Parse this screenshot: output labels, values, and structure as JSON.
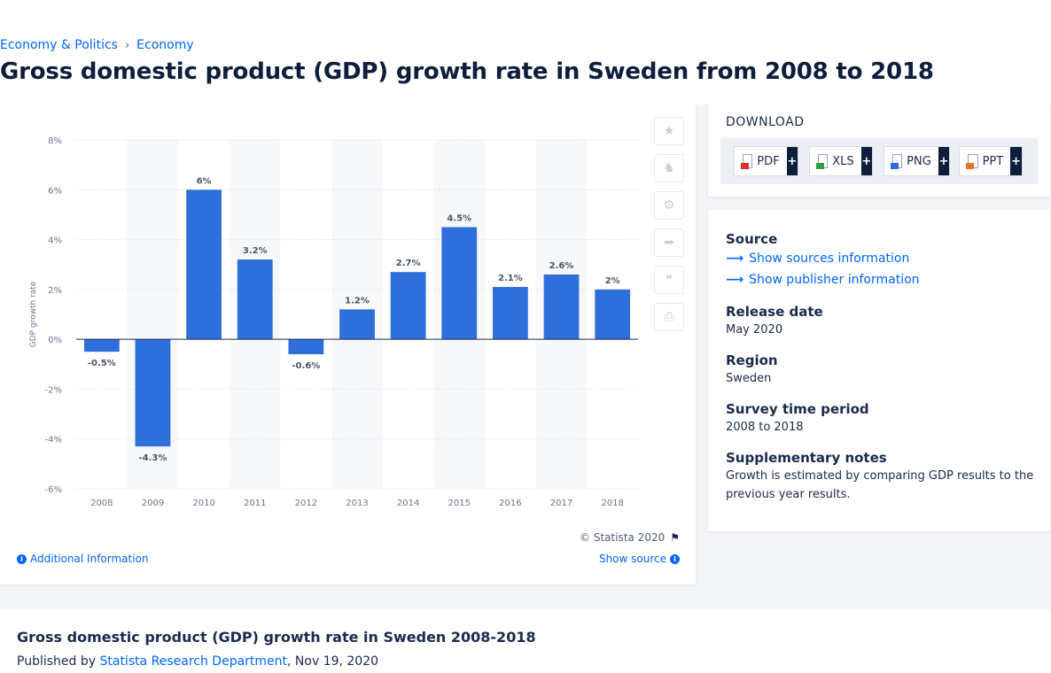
{
  "breadcrumb": {
    "items": [
      "Economy & Politics",
      "Economy"
    ],
    "separator": "›"
  },
  "page_title": "Gross domestic product (GDP) growth rate in Sweden from 2008 to 2018",
  "chart_card": {
    "copyright": "© Statista 2020",
    "additional_info": "Additional Information",
    "show_source": "Show source",
    "tools": [
      "star-icon",
      "bell-icon",
      "gear-icon",
      "share-icon",
      "quote-icon",
      "print-icon"
    ]
  },
  "download": {
    "title": "DOWNLOAD",
    "buttons": [
      {
        "label": "PDF",
        "color": "#d9342b"
      },
      {
        "label": "XLS",
        "color": "#2e9e49"
      },
      {
        "label": "PNG",
        "color": "#2a6fdb"
      },
      {
        "label": "PPT",
        "color": "#e8742b"
      }
    ],
    "plus": "+"
  },
  "meta": {
    "source_heading": "Source",
    "show_sources": "Show sources information",
    "show_publisher": "Show publisher information",
    "release_heading": "Release date",
    "release_value": "May 2020",
    "region_heading": "Region",
    "region_value": "Sweden",
    "period_heading": "Survey time period",
    "period_value": "2008 to 2018",
    "notes_heading": "Supplementary notes",
    "notes_value": "Growth is estimated by comparing GDP results to the previous year results."
  },
  "bottom": {
    "title": "Gross domestic product (GDP) growth rate in Sweden 2008-2018",
    "published_prefix": "Published by",
    "publisher": "Statista Research Department",
    "date": ", Nov 19, 2020"
  },
  "chart_data": {
    "type": "bar",
    "categories": [
      "2008",
      "2009",
      "2010",
      "2011",
      "2012",
      "2013",
      "2014",
      "2015",
      "2016",
      "2017",
      "2018"
    ],
    "values": [
      -0.5,
      -4.3,
      6,
      3.2,
      -0.6,
      1.2,
      2.7,
      4.5,
      2.1,
      2.6,
      2
    ],
    "labels": [
      "-0.5%",
      "-4.3%",
      "6%",
      "3.2%",
      "-0.6%",
      "1.2%",
      "2.7%",
      "4.5%",
      "2.1%",
      "2.6%",
      "2%"
    ],
    "ylabel": "GDP growth rate",
    "ylim": [
      -6,
      8
    ],
    "yticks": [
      8,
      6,
      4,
      2,
      0,
      -2,
      -4,
      -6
    ],
    "ytick_labels": [
      "8%",
      "6%",
      "4%",
      "2%",
      "0%",
      "-2%",
      "-4%",
      "-6%"
    ],
    "bar_color": "#2f6fdb",
    "grid": true
  }
}
